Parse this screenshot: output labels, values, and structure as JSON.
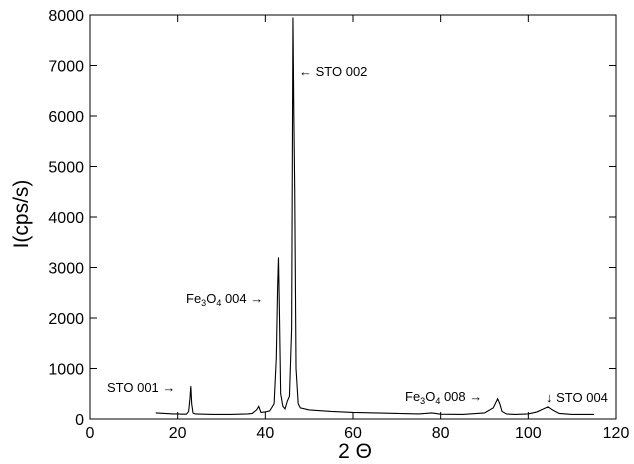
{
  "chart_data": {
    "type": "line",
    "xlabel": "2 Θ",
    "ylabel": "I(cps/s)",
    "xlim": [
      0,
      120
    ],
    "ylim": [
      0,
      8000
    ],
    "xticks": [
      0,
      20,
      40,
      60,
      80,
      100,
      120
    ],
    "yticks": [
      0,
      1000,
      2000,
      3000,
      4000,
      5000,
      6000,
      7000,
      8000
    ],
    "grid": false,
    "series": [
      {
        "x": [
          15,
          16,
          17,
          18,
          19,
          20,
          21,
          22,
          22.5,
          22.8,
          23,
          23.2,
          23.5,
          24,
          26,
          28,
          30,
          32,
          34,
          36,
          37,
          38,
          38.5,
          39,
          40,
          41,
          42,
          42.5,
          42.8,
          43,
          43.2,
          43.5,
          44,
          44.5,
          45,
          45.5,
          46,
          46.3,
          46.5,
          46.7,
          47,
          47.5,
          48,
          50,
          55,
          60,
          65,
          70,
          75,
          78,
          80,
          85,
          90,
          92,
          93,
          93.5,
          94,
          95,
          97,
          100,
          102,
          103.5,
          104.5,
          105.5,
          107,
          110,
          113,
          115
        ],
        "y": [
          120,
          115,
          110,
          105,
          100,
          100,
          95,
          95,
          150,
          400,
          650,
          300,
          120,
          100,
          95,
          90,
          90,
          90,
          95,
          100,
          110,
          180,
          250,
          130,
          140,
          160,
          300,
          1200,
          2600,
          3200,
          2200,
          500,
          250,
          200,
          350,
          450,
          1800,
          7950,
          6000,
          4550,
          1000,
          300,
          220,
          180,
          150,
          130,
          120,
          110,
          100,
          120,
          95,
          90,
          120,
          220,
          400,
          300,
          150,
          100,
          90,
          100,
          140,
          200,
          240,
          180,
          110,
          90,
          90,
          90
        ]
      }
    ],
    "annotations": [
      {
        "text": "STO 001 →",
        "x": 23,
        "y": 650
      },
      {
        "text": "Fe₃O₄ 004 →",
        "x": 43,
        "y": 3200
      },
      {
        "text": "← STO 002",
        "x": 46.5,
        "y": 7950
      },
      {
        "text": "Fe₃O₄ 008 →",
        "x": 93.5,
        "y": 400
      },
      {
        "text": "↓ STO 004",
        "x": 104.5,
        "y": 240
      }
    ]
  },
  "labels": {
    "sto001": "STO 001 →",
    "fe_prefix": "Fe",
    "sub3": "3",
    "o": "O",
    "sub4": "4",
    "fe004_suffix": " 004 →",
    "fe008_suffix": " 008 →",
    "sto002": "← STO 002",
    "sto004": "↓ STO 004"
  }
}
